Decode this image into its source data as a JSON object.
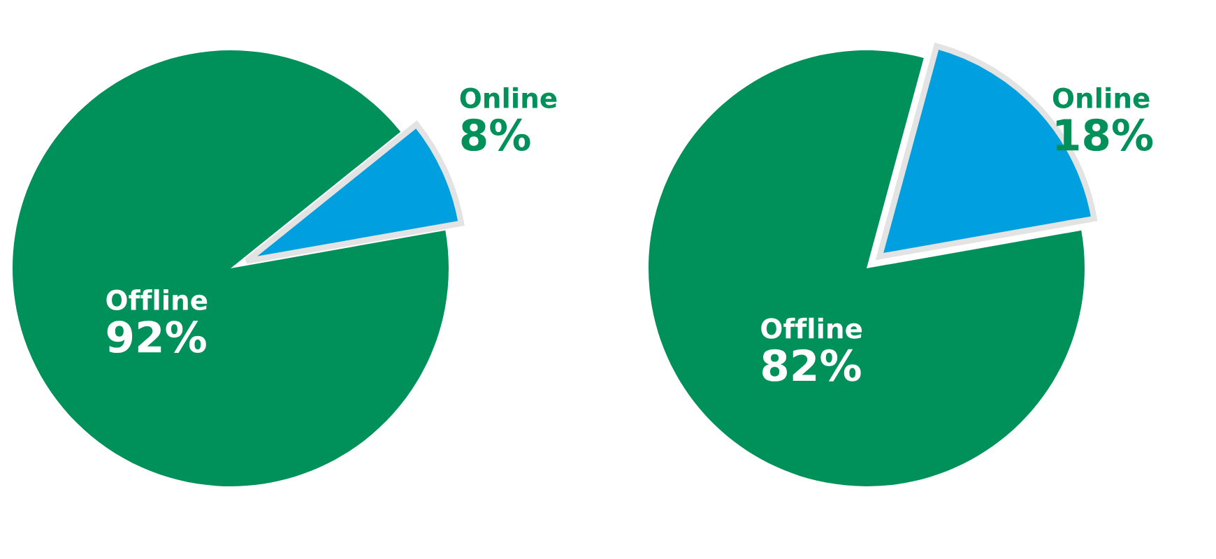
{
  "chart_data": [
    {
      "type": "pie",
      "categories": [
        "Online",
        "Offline"
      ],
      "values": [
        8,
        92
      ],
      "colors": [
        "#00a0e0",
        "#00915a"
      ],
      "value_labels": [
        "8%",
        "92%"
      ]
    },
    {
      "type": "pie",
      "categories": [
        "Online",
        "Offline"
      ],
      "values": [
        18,
        82
      ],
      "colors": [
        "#00a0e0",
        "#00915a"
      ],
      "value_labels": [
        "18%",
        "82%"
      ]
    }
  ]
}
